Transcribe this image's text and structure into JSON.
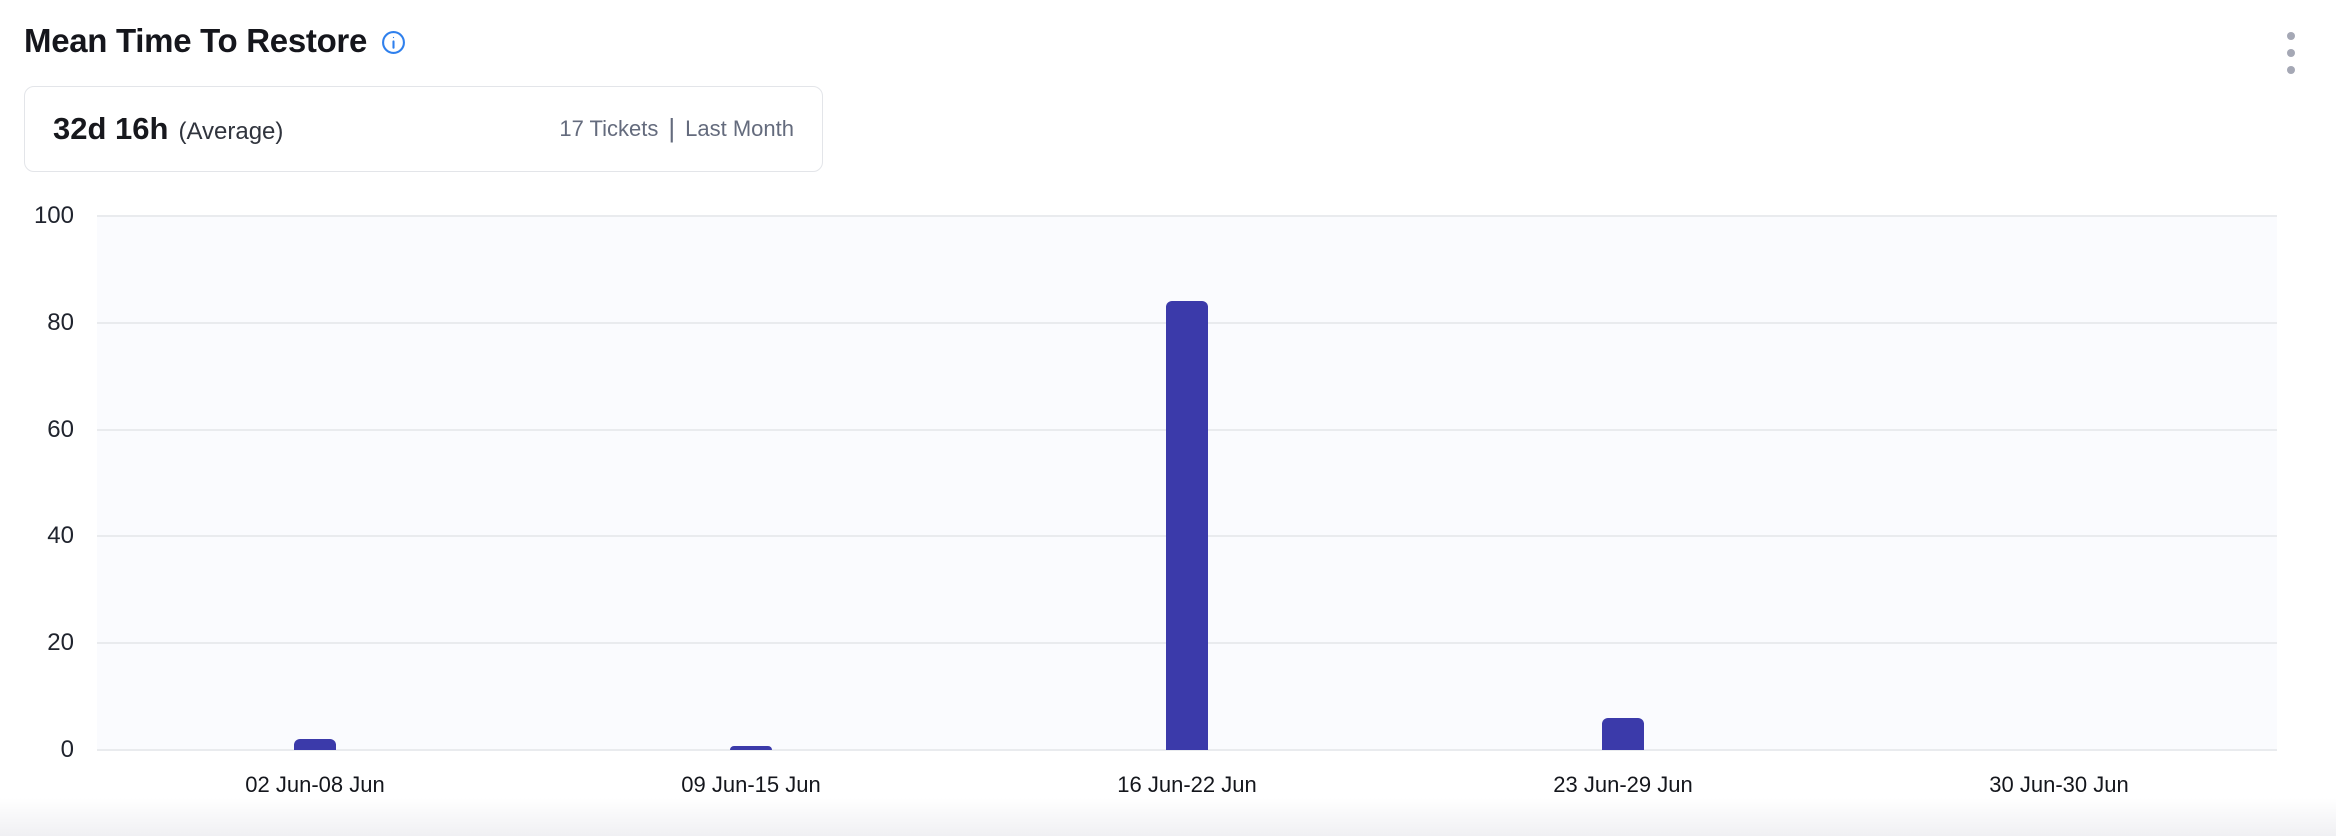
{
  "header": {
    "title": "Mean Time To Restore",
    "info_icon": "info-icon",
    "menu_icon": "kebab-menu"
  },
  "summary": {
    "value": "32d 16h",
    "value_suffix": "(Average)",
    "tickets": "17 Tickets",
    "divider": "|",
    "period": "Last Month"
  },
  "colors": {
    "bar": "#3b3aaa",
    "info_icon": "#2f80ed",
    "plot_background": "#fafbfe",
    "gridline": "#e9ebee",
    "kebab_dots": "#a5a8b5",
    "meta_text": "#646b7d"
  },
  "chart_data": {
    "type": "bar",
    "categories": [
      "02 Jun-08 Jun",
      "09 Jun-15 Jun",
      "16 Jun-22 Jun",
      "23 Jun-29 Jun",
      "30 Jun-30 Jun"
    ],
    "values": [
      2,
      0.8,
      84,
      6,
      0
    ],
    "title": "Mean Time To Restore",
    "xlabel": "",
    "ylabel": "",
    "ylim": [
      0,
      100
    ],
    "yticks": [
      0,
      20,
      40,
      60,
      80,
      100
    ],
    "grid": true,
    "legend": false,
    "bar_color": "#3b3aaa"
  }
}
